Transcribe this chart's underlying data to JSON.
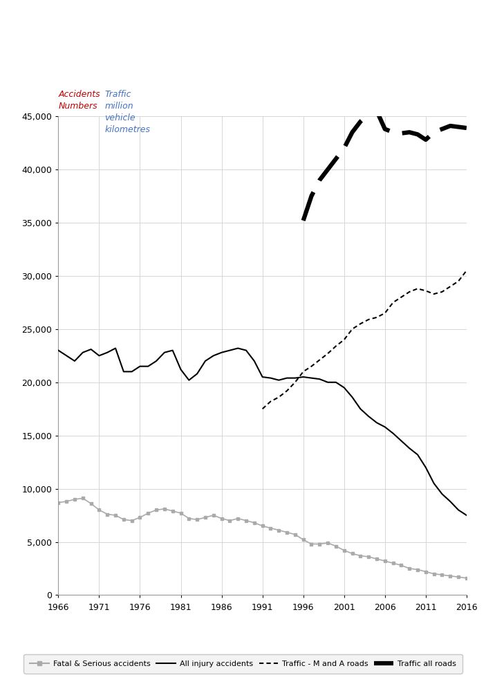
{
  "years": [
    1966,
    1967,
    1968,
    1969,
    1970,
    1971,
    1972,
    1973,
    1974,
    1975,
    1976,
    1977,
    1978,
    1979,
    1980,
    1981,
    1982,
    1983,
    1984,
    1985,
    1986,
    1987,
    1988,
    1989,
    1990,
    1991,
    1992,
    1993,
    1994,
    1995,
    1996,
    1997,
    1998,
    1999,
    2000,
    2001,
    2002,
    2003,
    2004,
    2005,
    2006,
    2007,
    2008,
    2009,
    2010,
    2011,
    2012,
    2013,
    2014,
    2015,
    2016
  ],
  "all_injury": [
    23000,
    22500,
    22000,
    22800,
    23100,
    22500,
    22800,
    23200,
    21000,
    21000,
    21500,
    21500,
    22000,
    22800,
    23000,
    21200,
    20200,
    20800,
    22000,
    22500,
    22800,
    23000,
    23200,
    23000,
    22000,
    20500,
    20400,
    20200,
    20400,
    20400,
    20500,
    20400,
    20300,
    20000,
    20000,
    19500,
    18600,
    17500,
    16800,
    16200,
    15800,
    15200,
    14500,
    13800,
    13200,
    12000,
    10500,
    9500,
    8800,
    8000,
    7500
  ],
  "fatal_serious": [
    8700,
    8800,
    9000,
    9100,
    8600,
    8000,
    7600,
    7500,
    7100,
    7000,
    7300,
    7700,
    8000,
    8100,
    7900,
    7700,
    7200,
    7100,
    7300,
    7500,
    7200,
    7000,
    7200,
    7000,
    6800,
    6500,
    6300,
    6100,
    5900,
    5700,
    5200,
    4800,
    4800,
    4900,
    4600,
    4200,
    3900,
    3700,
    3600,
    3400,
    3200,
    3000,
    2800,
    2500,
    2400,
    2200,
    2000,
    1900,
    1800,
    1700,
    1600
  ],
  "traffic_m_a": [
    null,
    null,
    null,
    null,
    null,
    null,
    null,
    null,
    null,
    null,
    null,
    null,
    null,
    null,
    null,
    null,
    null,
    null,
    null,
    null,
    null,
    null,
    null,
    null,
    null,
    17500,
    18200,
    18600,
    19200,
    20000,
    21000,
    21500,
    22100,
    22700,
    23400,
    24000,
    25000,
    25500,
    25900,
    26100,
    26500,
    27500,
    28000,
    28500,
    28800,
    28600,
    28300,
    28500,
    29000,
    29500,
    30500
  ],
  "traffic_all": [
    null,
    null,
    null,
    null,
    null,
    null,
    null,
    null,
    null,
    null,
    null,
    null,
    null,
    null,
    null,
    null,
    null,
    null,
    null,
    null,
    null,
    null,
    null,
    null,
    null,
    null,
    null,
    null,
    null,
    null,
    35200,
    37500,
    39000,
    40000,
    41000,
    42000,
    43500,
    44500,
    45200,
    45500,
    43800,
    43500,
    43400,
    43500,
    43300,
    42800,
    43500,
    43800,
    44100,
    44000,
    43900
  ],
  "ylabel1_color": "#c00000",
  "ylabel2_color": "#4472c4",
  "background_color": "#ffffff",
  "grid_color": "#d0d0d0",
  "yticks": [
    0,
    5000,
    10000,
    15000,
    20000,
    25000,
    30000,
    35000,
    40000,
    45000
  ],
  "xticks": [
    1966,
    1971,
    1976,
    1981,
    1986,
    1991,
    1996,
    2001,
    2006,
    2011,
    2016
  ]
}
